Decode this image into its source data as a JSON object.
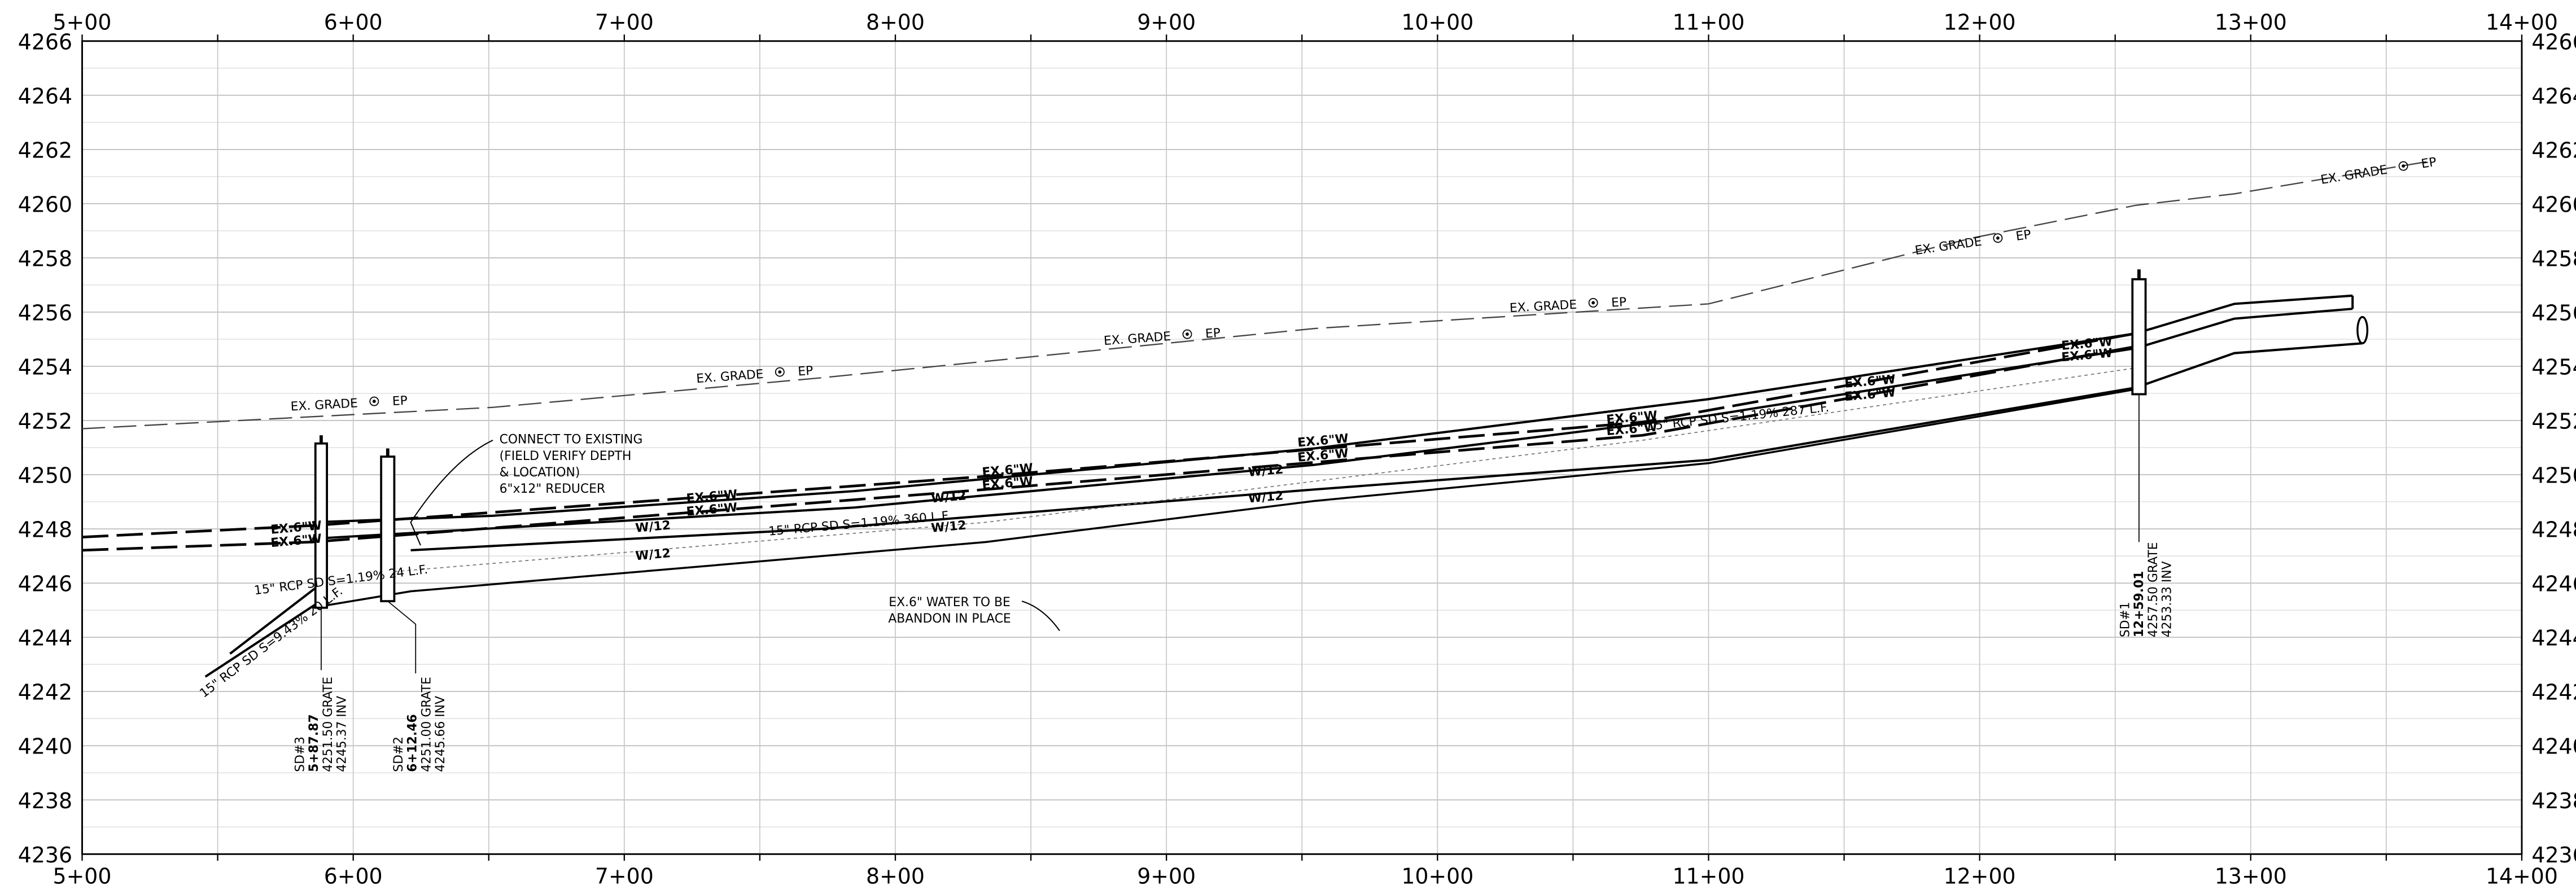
{
  "axes": {
    "stations": [
      "5+00",
      "6+00",
      "7+00",
      "8+00",
      "9+00",
      "10+00",
      "11+00",
      "12+00",
      "13+00",
      "14+00"
    ],
    "elevations": [
      4266,
      4264,
      4262,
      4260,
      4258,
      4256,
      4254,
      4252,
      4250,
      4248,
      4246,
      4244,
      4242,
      4240,
      4238,
      4236
    ]
  },
  "grade_labels": [
    {
      "text": "EX. GRADE",
      "point": "EP"
    },
    {
      "text": "EX. GRADE",
      "point": "EP"
    },
    {
      "text": "EX. GRADE",
      "point": "EP"
    },
    {
      "text": "EX. GRADE",
      "point": "EP"
    },
    {
      "text": "EX. GRADE",
      "point": "EP"
    },
    {
      "text": "EX. GRADE",
      "point": "EP"
    }
  ],
  "notes": {
    "connect": [
      "CONNECT TO EXISTING",
      "(FIELD VERIFY DEPTH",
      "& LOCATION)",
      "6\"x12\" REDUCER"
    ],
    "abandon": [
      "EX.6\" WATER TO BE",
      "ABANDON IN PLACE"
    ]
  },
  "pipe_labels": [
    "15\" RCP SD S=1.19% 360 L.F.",
    "15\" RCP SD S=1.19% 287 L.F.",
    "15\" RCP SD S=1.19% 24 L.F.",
    "15\" RCP SD S=9.43% 20 L.F."
  ],
  "water_labels": [
    "EX.6\"W",
    "EX.6\"W",
    "EX.6\"W",
    "EX.6\"W",
    "EX.6\"W",
    "EX.6\"W",
    "EX.6\"W",
    "EX.6\"W",
    "EX.6\"W",
    "EX.6\"W",
    "EX.6\"W",
    "EX.6\"W",
    "EX.6\"W",
    "EX.6\"W"
  ],
  "main_labels": [
    "W/12",
    "W/12",
    "W/12",
    "W/12",
    "W/12",
    "W/12"
  ],
  "structures": [
    {
      "name": "SD#3",
      "station": "5+87.87",
      "grate": "4251.50 GRATE",
      "inv": "4245.37 INV"
    },
    {
      "name": "SD#2",
      "station": "6+12.46",
      "grate": "4251.00 GRATE",
      "inv": "4245.66 INV"
    },
    {
      "name": "SD#1",
      "station": "12+59.01",
      "grate": "4257.50 GRATE",
      "inv": "4253.33 INV"
    }
  ]
}
